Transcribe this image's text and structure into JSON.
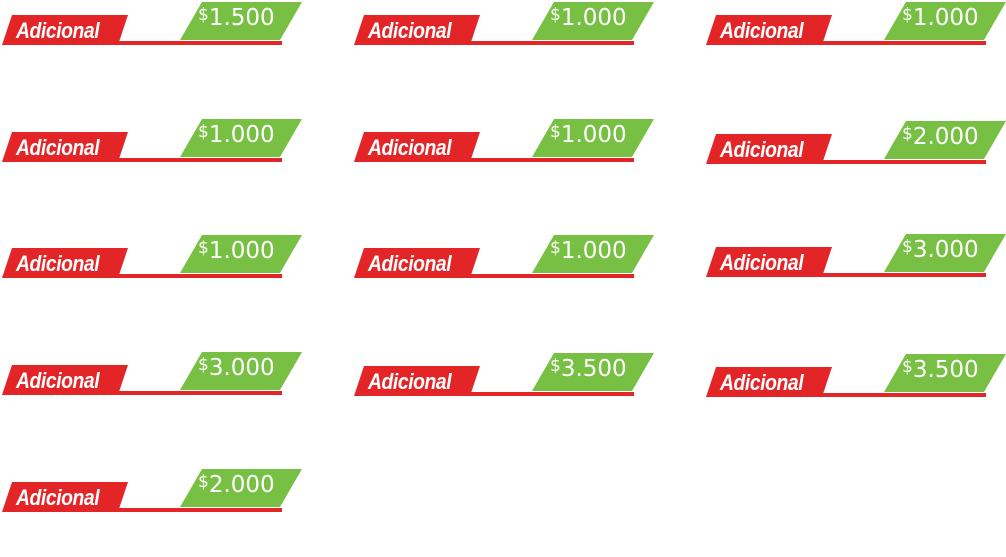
{
  "tags": [
    {
      "label": "Adicional",
      "currency": "$",
      "amount": "1.500"
    },
    {
      "label": "Adicional",
      "currency": "$",
      "amount": "1.000"
    },
    {
      "label": "Adicional",
      "currency": "$",
      "amount": "1.000"
    },
    {
      "label": "Adicional",
      "currency": "$",
      "amount": "1.000"
    },
    {
      "label": "Adicional",
      "currency": "$",
      "amount": "1.000"
    },
    {
      "label": "Adicional",
      "currency": "$",
      "amount": "2.000"
    },
    {
      "label": "Adicional",
      "currency": "$",
      "amount": "1.000"
    },
    {
      "label": "Adicional",
      "currency": "$",
      "amount": "1.000"
    },
    {
      "label": "Adicional",
      "currency": "$",
      "amount": "3.000"
    },
    {
      "label": "Adicional",
      "currency": "$",
      "amount": "3.000"
    },
    {
      "label": "Adicional",
      "currency": "$",
      "amount": "3.500"
    },
    {
      "label": "Adicional",
      "currency": "$",
      "amount": "3.500"
    },
    {
      "label": "Adicional",
      "currency": "$",
      "amount": "2.000"
    }
  ],
  "colors": {
    "red": "#e42528",
    "green": "#77c043",
    "text": "#ffffff"
  }
}
